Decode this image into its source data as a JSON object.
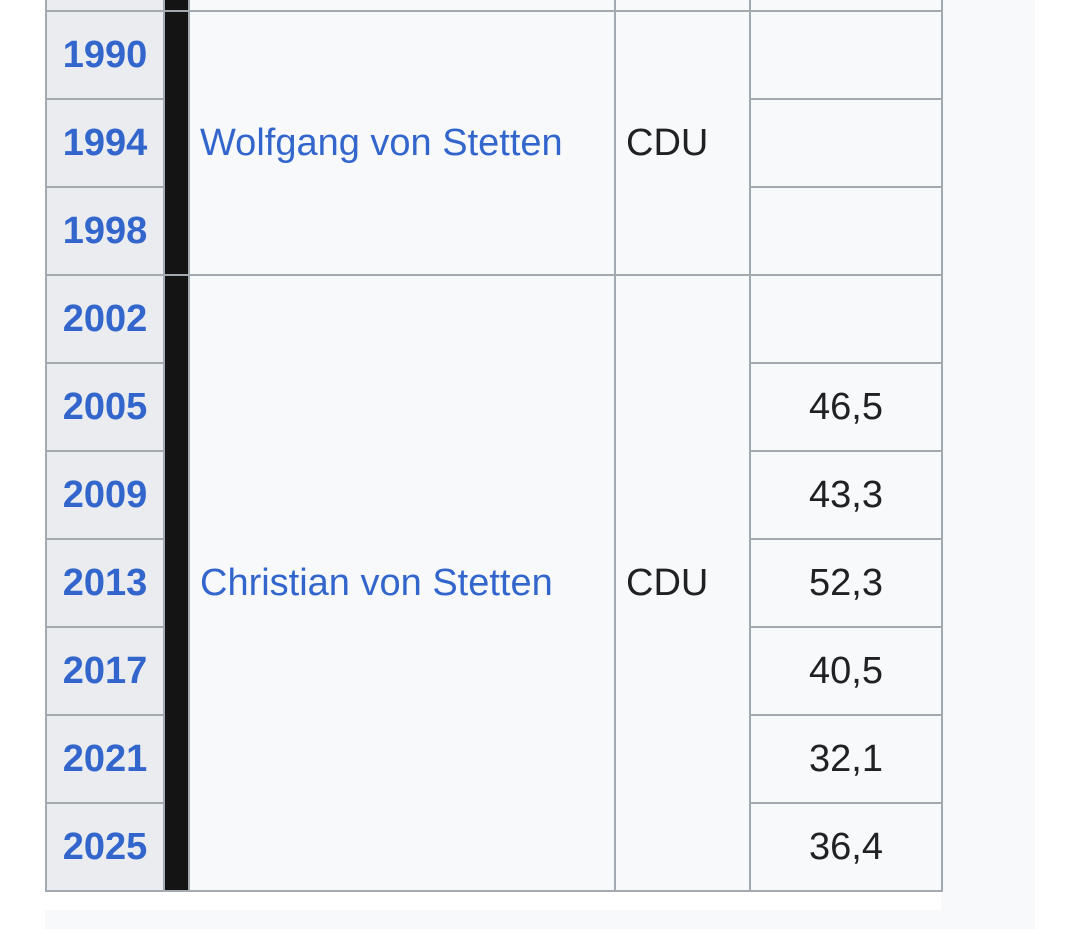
{
  "table": {
    "rows": [
      {
        "year": "",
        "pct": ""
      },
      {
        "year": "1990",
        "pct": ""
      },
      {
        "year": "1994",
        "pct": ""
      },
      {
        "year": "1998",
        "pct": ""
      },
      {
        "year": "2002",
        "pct": ""
      },
      {
        "year": "2005",
        "pct": "46,5"
      },
      {
        "year": "2009",
        "pct": "43,3"
      },
      {
        "year": "2013",
        "pct": "52,3"
      },
      {
        "year": "2017",
        "pct": "40,5"
      },
      {
        "year": "2021",
        "pct": "32,1"
      },
      {
        "year": "2025",
        "pct": "36,4"
      }
    ],
    "groups": [
      {
        "candidate": "",
        "party": ""
      },
      {
        "candidate": "Wolfgang von Stetten",
        "party": "CDU"
      },
      {
        "candidate": "Christian von Stetten",
        "party": "CDU"
      }
    ],
    "colors": {
      "party_bar": "#141414",
      "link": "#3366cc",
      "header_cell": "#eaecf0",
      "cell": "#f8f9fa",
      "border": "#a2a9b1"
    }
  }
}
